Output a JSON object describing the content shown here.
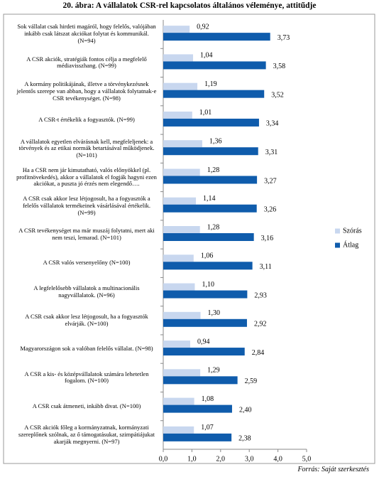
{
  "chart_data": {
    "type": "hbar",
    "title": "20. ábra: A vállalatok CSR-rel kapcsolatos általános véleménye, attitűdje",
    "source": "Forrás: Saját szerkesztés",
    "categories": [
      "Sok vállalat csak hirdeti magáról, hogy felelős, valójában inkább csak látszat akciókat folytat és kommunikál. (N=94)",
      "A CSR akciók, stratégiák fontos célja a megfelelő médiavisszhang. (N=99)",
      "A kormány politikájának, illetve a törvénykezésnek jelentős szerepe van abban, hogy a vállalatok folytatnak-e CSR tevékenységet. (N=98)",
      "A CSR-t értékelik a fogyasztók. (N=99)",
      "A vállalatok egyetlen elvárásnak kell, megfeleljenek: a törvények és az etikai normák betartásával működjenek. (N=101)",
      "Ha a CSR nem jár kimutatható, valós előnyökkel (pl. profitnövekedés), akkor a vállalatok el fogják hagyni ezen akciókat, a puszta jó érzés nem elegendő….",
      "A CSR csak akkor lesz létjogosult, ha a fogyasztók a felelős vállalatok termékeinek vásárlásával értékelik. (N=99)",
      "A CSR tevékenységet ma már muszáj folytatni, mert aki nem teszi, lemarad. (N=101)",
      "A CSR valós versenyelőny (N=100)",
      "A legfelelősebb vállalatok a multinacionális nagyvállalatok. (N=96)",
      "A CSR csak akkor lesz létjogosult, ha a fogyasztók elvárják. (N=100)",
      "Magyarországon sok a valóban felelős vállalat. (N=98)",
      "A CSR a kis- és középvállalatok számára lehetetlen fogalom. (N=100)",
      "A CSR csak átmeneti, inkább divat. (N=100)",
      "A CSR akciók főleg a kormányzatnak, kormányzati szereplőnek szólnak, az ő támogatásukat, szimpátiájukat akarják megnyerni. (N=97)"
    ],
    "series": [
      {
        "name": "Szórás",
        "color": "#c8d7ef",
        "values": [
          0.92,
          1.04,
          1.19,
          1.01,
          1.36,
          1.28,
          1.14,
          1.28,
          1.06,
          1.1,
          1.3,
          0.94,
          1.29,
          1.08,
          1.07
        ],
        "value_labels": [
          "0,92",
          "1,04",
          "1,19",
          "1,01",
          "1,36",
          "1,28",
          "1,14",
          "1,28",
          "1,06",
          "1,10",
          "1,30",
          "0,94",
          "1,29",
          "1,08",
          "1,07"
        ]
      },
      {
        "name": "Átlag",
        "color": "#0f5cac",
        "values": [
          3.73,
          3.58,
          3.52,
          3.34,
          3.31,
          3.27,
          3.26,
          3.16,
          3.11,
          2.93,
          2.92,
          2.84,
          2.59,
          2.4,
          2.38
        ],
        "value_labels": [
          "3,73",
          "3,58",
          "3,52",
          "3,34",
          "3,31",
          "3,27",
          "3,26",
          "3,16",
          "3,11",
          "2,93",
          "2,92",
          "2,84",
          "2,59",
          "2,40",
          "2,38"
        ]
      }
    ],
    "xlim": [
      0,
      5
    ],
    "xticks": [
      {
        "value": 0,
        "label": "0,0"
      },
      {
        "value": 1,
        "label": "1,0"
      },
      {
        "value": 2,
        "label": "2,0"
      },
      {
        "value": 3,
        "label": "3,0"
      },
      {
        "value": 4,
        "label": "4,0"
      },
      {
        "value": 5,
        "label": "5,0"
      }
    ],
    "grid": false,
    "legend": "right"
  }
}
